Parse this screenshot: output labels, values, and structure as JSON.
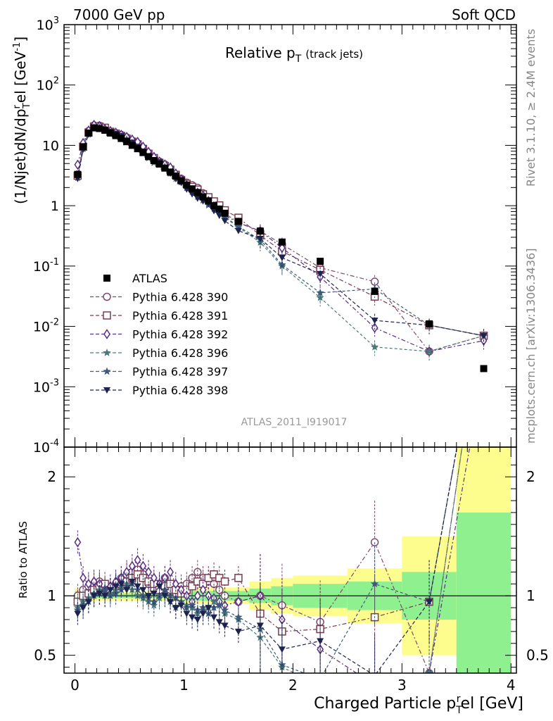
{
  "header": {
    "left": "7000 GeV pp",
    "right": "Soft QCD"
  },
  "side_labels": {
    "rivet": "Rivet 3.1.10, ≥ 2.4M events",
    "mcplots": "mcplots.cern.ch [arXiv:1306.3436]"
  },
  "colors": {
    "atlas": "#000000",
    "s390": "#7b4a6e",
    "s391": "#7a3b4f",
    "s392": "#5a2d86",
    "s396": "#4a7a78",
    "s397": "#3e5a7a",
    "s398": "#1c2350",
    "band_stat": "#8ef08e",
    "band_syst": "#fdfd8e"
  },
  "chart_data": {
    "type": "scatter",
    "title": "Relative p",
    "title_sub": "T",
    "title_suffix": "(track jets)",
    "analysis_label": "ATLAS_2011_I919017",
    "xlabel": "Charged Particle p",
    "xlabel_sub": "T",
    "xlabel_sup": "r",
    "xlabel_suffix": "el [GeV]",
    "ylabel_pre": "(1/Njet)dN/dp",
    "ylabel_sup": "r",
    "ylabel_sub": "T",
    "ylabel_post": "el [GeV",
    "ylabel_exp": "-1",
    "ylabel_end": "]",
    "ratio_ylabel": "Ratio to ATLAS",
    "xlim": [
      -0.1,
      4.05
    ],
    "ylim": [
      0.0001,
      1000
    ],
    "yscale": "log",
    "ratio_ylim": [
      0.35,
      2.25
    ],
    "x_ticks": [
      "0",
      "1",
      "2",
      "3",
      "4"
    ],
    "y_ticks": [
      {
        "base": "10",
        "exp": "3"
      },
      {
        "base": "10",
        "exp": "2"
      },
      {
        "base": "10",
        "exp": ""
      },
      {
        "base": "1",
        "exp": ""
      },
      {
        "base": "10",
        "exp": "-1"
      },
      {
        "base": "10",
        "exp": "-2"
      },
      {
        "base": "10",
        "exp": "-3"
      },
      {
        "base": "10",
        "exp": "-4"
      }
    ],
    "ratio_ticks": [
      "2",
      "1",
      "0.5"
    ],
    "x": [
      0.025,
      0.075,
      0.125,
      0.175,
      0.225,
      0.275,
      0.325,
      0.375,
      0.425,
      0.475,
      0.525,
      0.575,
      0.625,
      0.675,
      0.725,
      0.775,
      0.825,
      0.875,
      0.925,
      0.975,
      1.025,
      1.075,
      1.125,
      1.175,
      1.225,
      1.275,
      1.325,
      1.375,
      1.5,
      1.7,
      1.9,
      2.25,
      2.75,
      3.25,
      3.75
    ],
    "atlas": [
      3.3,
      9.5,
      16.0,
      19.5,
      19.0,
      17.8,
      16.0,
      14.5,
      13.0,
      11.5,
      10.0,
      8.8,
      7.6,
      6.5,
      5.6,
      4.9,
      4.2,
      3.6,
      3.1,
      2.6,
      2.2,
      1.9,
      1.65,
      1.4,
      1.2,
      1.0,
      0.88,
      0.75,
      0.55,
      0.38,
      0.25,
      0.12,
      0.038,
      0.011,
      0.002
    ],
    "series": [
      {
        "name": "Pythia 6.428 390",
        "color_key": "s390",
        "marker": "circle",
        "ratio": [
          1.0,
          1.05,
          1.08,
          1.1,
          1.12,
          1.06,
          1.04,
          1.1,
          1.15,
          1.18,
          1.2,
          1.22,
          1.18,
          1.1,
          1.05,
          1.1,
          1.15,
          1.05,
          1.02,
          1.08,
          1.1,
          1.15,
          1.2,
          1.15,
          1.12,
          1.1,
          1.05,
          1.0,
          0.95,
          1.0,
          0.92,
          0.78,
          1.45,
          0.35,
          3.5
        ]
      },
      {
        "name": "Pythia 6.428 391",
        "color_key": "s391",
        "marker": "square",
        "ratio": [
          0.95,
          1.0,
          1.02,
          1.05,
          1.08,
          1.1,
          1.05,
          1.08,
          1.1,
          1.12,
          1.15,
          1.18,
          1.15,
          1.12,
          1.1,
          1.05,
          1.08,
          1.1,
          1.05,
          1.02,
          1.05,
          1.08,
          1.12,
          1.1,
          1.15,
          1.18,
          1.15,
          1.12,
          1.15,
          0.85,
          0.7,
          0.72,
          0.82,
          0.95,
          3.5
        ]
      },
      {
        "name": "Pythia 6.428 392",
        "color_key": "s392",
        "marker": "diamond",
        "ratio": [
          1.45,
          1.15,
          1.1,
          1.12,
          1.1,
          1.05,
          1.08,
          1.12,
          1.15,
          1.2,
          1.25,
          1.3,
          1.25,
          1.2,
          1.15,
          1.1,
          1.15,
          1.2,
          1.1,
          1.05,
          1.0,
          0.95,
          1.0,
          1.05,
          1.0,
          0.98,
          0.95,
          0.92,
          0.95,
          1.0,
          0.8,
          0.55,
          0.25,
          0.35,
          2.9
        ]
      },
      {
        "name": "Pythia 6.428 396",
        "color_key": "s396",
        "marker": "star",
        "ratio": [
          0.9,
          0.95,
          0.98,
          1.02,
          1.05,
          1.0,
          1.02,
          1.05,
          1.08,
          1.1,
          1.05,
          1.0,
          0.98,
          0.95,
          0.92,
          0.98,
          1.02,
          0.95,
          0.9,
          0.95,
          0.92,
          0.9,
          0.85,
          0.88,
          0.9,
          0.95,
          0.92,
          0.85,
          0.8,
          0.65,
          0.4,
          0.25,
          0.12,
          0.35,
          3.5
        ]
      },
      {
        "name": "Pythia 6.428 397",
        "color_key": "s397",
        "marker": "star",
        "ratio": [
          0.88,
          0.92,
          0.95,
          1.0,
          1.02,
          1.05,
          1.0,
          1.02,
          1.05,
          1.08,
          1.1,
          1.05,
          1.0,
          0.98,
          0.95,
          1.0,
          1.05,
          1.0,
          0.98,
          0.95,
          0.9,
          0.92,
          0.88,
          0.9,
          0.85,
          0.9,
          0.92,
          0.88,
          0.82,
          0.72,
          0.42,
          0.3,
          1.1,
          0.95,
          3.5
        ]
      },
      {
        "name": "Pythia 6.428 398",
        "color_key": "s398",
        "marker": "triangle-down",
        "ratio": [
          0.85,
          0.9,
          0.95,
          1.0,
          1.02,
          1.0,
          1.05,
          1.08,
          1.1,
          1.05,
          1.12,
          1.08,
          1.05,
          1.0,
          1.02,
          1.08,
          1.0,
          0.95,
          0.9,
          0.92,
          0.85,
          0.82,
          0.8,
          0.85,
          0.9,
          0.82,
          0.78,
          0.75,
          0.7,
          0.75,
          0.55,
          0.62,
          0.33,
          0.95,
          3.5
        ]
      }
    ],
    "band_bins": [
      {
        "lo": 0.0,
        "hi": 0.05,
        "stat": 0.04,
        "syst": 0.06
      },
      {
        "lo": 0.05,
        "hi": 1.0,
        "stat": 0.02,
        "syst": 0.04
      },
      {
        "lo": 1.0,
        "hi": 1.6,
        "stat": 0.04,
        "syst": 0.07
      },
      {
        "lo": 1.6,
        "hi": 1.8,
        "stat": 0.06,
        "syst": 0.12
      },
      {
        "lo": 1.8,
        "hi": 2.0,
        "stat": 0.08,
        "syst": 0.15
      },
      {
        "lo": 2.0,
        "hi": 2.5,
        "stat": 0.1,
        "syst": 0.17
      },
      {
        "lo": 2.5,
        "hi": 3.0,
        "stat": 0.12,
        "syst": 0.23
      },
      {
        "lo": 3.0,
        "hi": 3.5,
        "stat": 0.2,
        "syst": 0.5
      },
      {
        "lo": 3.5,
        "hi": 4.0,
        "stat": 0.7,
        "syst": 1.25
      }
    ],
    "legend": [
      {
        "label": "ATLAS",
        "color_key": "atlas",
        "marker": "filled-square"
      },
      {
        "label": "Pythia 6.428 390",
        "color_key": "s390",
        "marker": "circle"
      },
      {
        "label": "Pythia 6.428 391",
        "color_key": "s391",
        "marker": "square"
      },
      {
        "label": "Pythia 6.428 392",
        "color_key": "s392",
        "marker": "diamond"
      },
      {
        "label": "Pythia 6.428 396",
        "color_key": "s396",
        "marker": "star"
      },
      {
        "label": "Pythia 6.428 397",
        "color_key": "s397",
        "marker": "star"
      },
      {
        "label": "Pythia 6.428 398",
        "color_key": "s398",
        "marker": "triangle-down"
      }
    ],
    "legend_position": "left-middle of main panel",
    "grid": false
  }
}
